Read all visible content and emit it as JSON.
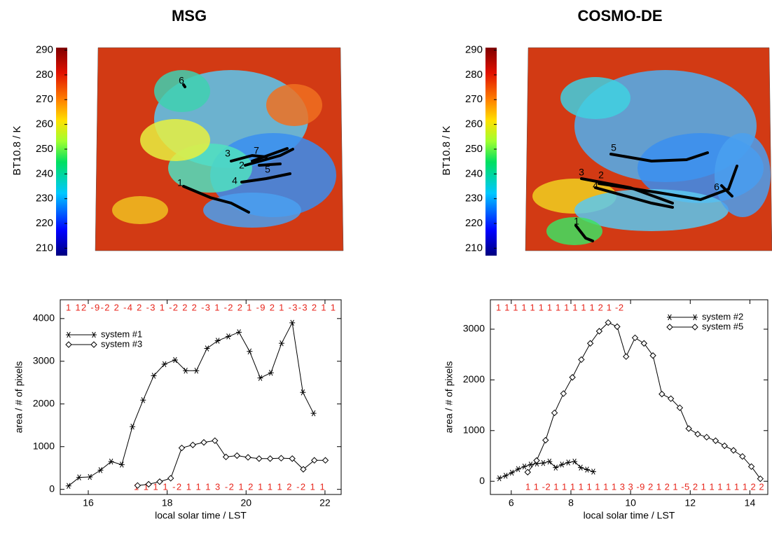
{
  "chart_data": [
    {
      "type": "map",
      "title": "MSG",
      "colorbar_label": "BT10.8 / K",
      "clim": [
        207,
        291
      ],
      "colorbar_ticks": [
        210,
        220,
        230,
        240,
        250,
        260,
        270,
        280,
        290
      ],
      "track_labels": [
        "6",
        "3",
        "7",
        "2",
        "5",
        "4",
        "1"
      ]
    },
    {
      "type": "map",
      "title": "COSMO-DE",
      "colorbar_label": "BT10.8 / K",
      "clim": [
        207,
        291
      ],
      "colorbar_ticks": [
        210,
        220,
        230,
        240,
        250,
        260,
        270,
        280,
        290
      ],
      "track_labels": [
        "5",
        "3",
        "2",
        "4",
        "6",
        "1"
      ]
    },
    {
      "type": "line",
      "x_label": "local solar time / LST",
      "y_label": "area / # of pixels",
      "xlim": [
        15.29,
        22.41
      ],
      "xticks": [
        16,
        18,
        20,
        22
      ],
      "ylim": [
        -120,
        4440
      ],
      "yticks": [
        0,
        1000,
        2000,
        3000,
        4000
      ],
      "legend": "upper-left",
      "top_events": "1  12    -9-2 2  -4 2  -3 1  -2 2 2  -3 1  -2 2 1  -9 2 1  -3-3  2 1 1",
      "bottom_events": "1 1 1 1  -2  1 1 1 3  -2  1 2 1 1 1 2  -2  1 1",
      "series": [
        {
          "name": "system #1",
          "marker": "star",
          "color": "#000000",
          "x": [
            15.5,
            15.77,
            16.04,
            16.31,
            16.58,
            16.85,
            17.12,
            17.39,
            17.66,
            17.93,
            18.2,
            18.47,
            18.74,
            19.01,
            19.28,
            19.55,
            19.82,
            20.09,
            20.36,
            20.63,
            20.9,
            21.17,
            21.44,
            21.71
          ],
          "values": [
            80,
            280,
            290,
            450,
            650,
            580,
            1470,
            2090,
            2660,
            2930,
            3030,
            2780,
            2780,
            3300,
            3480,
            3580,
            3680,
            3230,
            2610,
            2730,
            3420,
            3900,
            2270,
            1780
          ]
        },
        {
          "name": "system #3",
          "marker": "diamond",
          "color": "#000000",
          "x": [
            17.25,
            17.53,
            17.81,
            18.09,
            18.37,
            18.65,
            18.93,
            19.21,
            19.49,
            19.77,
            20.05,
            20.33,
            20.61,
            20.89,
            21.17,
            21.45,
            21.73,
            22.01
          ],
          "values": [
            90,
            120,
            180,
            260,
            970,
            1040,
            1100,
            1140,
            760,
            790,
            750,
            720,
            720,
            730,
            720,
            470,
            680,
            680
          ]
        }
      ]
    },
    {
      "type": "line",
      "x_label": "local solar time / LST",
      "y_label": "area / # of pixels",
      "xlim": [
        5.3,
        14.6
      ],
      "xticks": [
        6,
        8,
        10,
        12,
        14
      ],
      "ylim": [
        -260,
        3580
      ],
      "yticks": [
        0,
        1000,
        2000,
        3000
      ],
      "legend": "upper-right",
      "top_events": "1 1 1 1 1 1 1 1 1 1 1 1 2 1  -2",
      "bottom_events": "1 1  -2  1 1 1 1 1 1 1 1 3 3  -9 2  1 2 1  -5  2 1 1 1 1 1 1 2 2",
      "series": [
        {
          "name": "system #2",
          "marker": "star",
          "color": "#000000",
          "x": [
            5.6,
            5.81,
            6.02,
            6.23,
            6.44,
            6.65,
            6.86,
            7.07,
            7.28,
            7.49,
            7.7,
            7.91,
            8.12,
            8.33,
            8.54,
            8.75
          ],
          "values": [
            60,
            110,
            170,
            240,
            290,
            330,
            350,
            360,
            390,
            270,
            330,
            370,
            390,
            270,
            230,
            190
          ]
        },
        {
          "name": "system #5",
          "marker": "diamond",
          "color": "#000000",
          "x": [
            6.55,
            6.85,
            7.15,
            7.45,
            7.75,
            8.05,
            8.35,
            8.65,
            8.95,
            9.25,
            9.55,
            9.85,
            10.15,
            10.45,
            10.75,
            11.05,
            11.35,
            11.65,
            11.95,
            12.25,
            12.55,
            12.85,
            13.15,
            13.45,
            13.75,
            14.05,
            14.35
          ],
          "values": [
            180,
            410,
            810,
            1350,
            1730,
            2050,
            2400,
            2720,
            2960,
            3130,
            3050,
            2460,
            2830,
            2720,
            2480,
            1720,
            1630,
            1450,
            1040,
            930,
            870,
            800,
            700,
            610,
            490,
            290,
            50
          ]
        }
      ]
    }
  ]
}
